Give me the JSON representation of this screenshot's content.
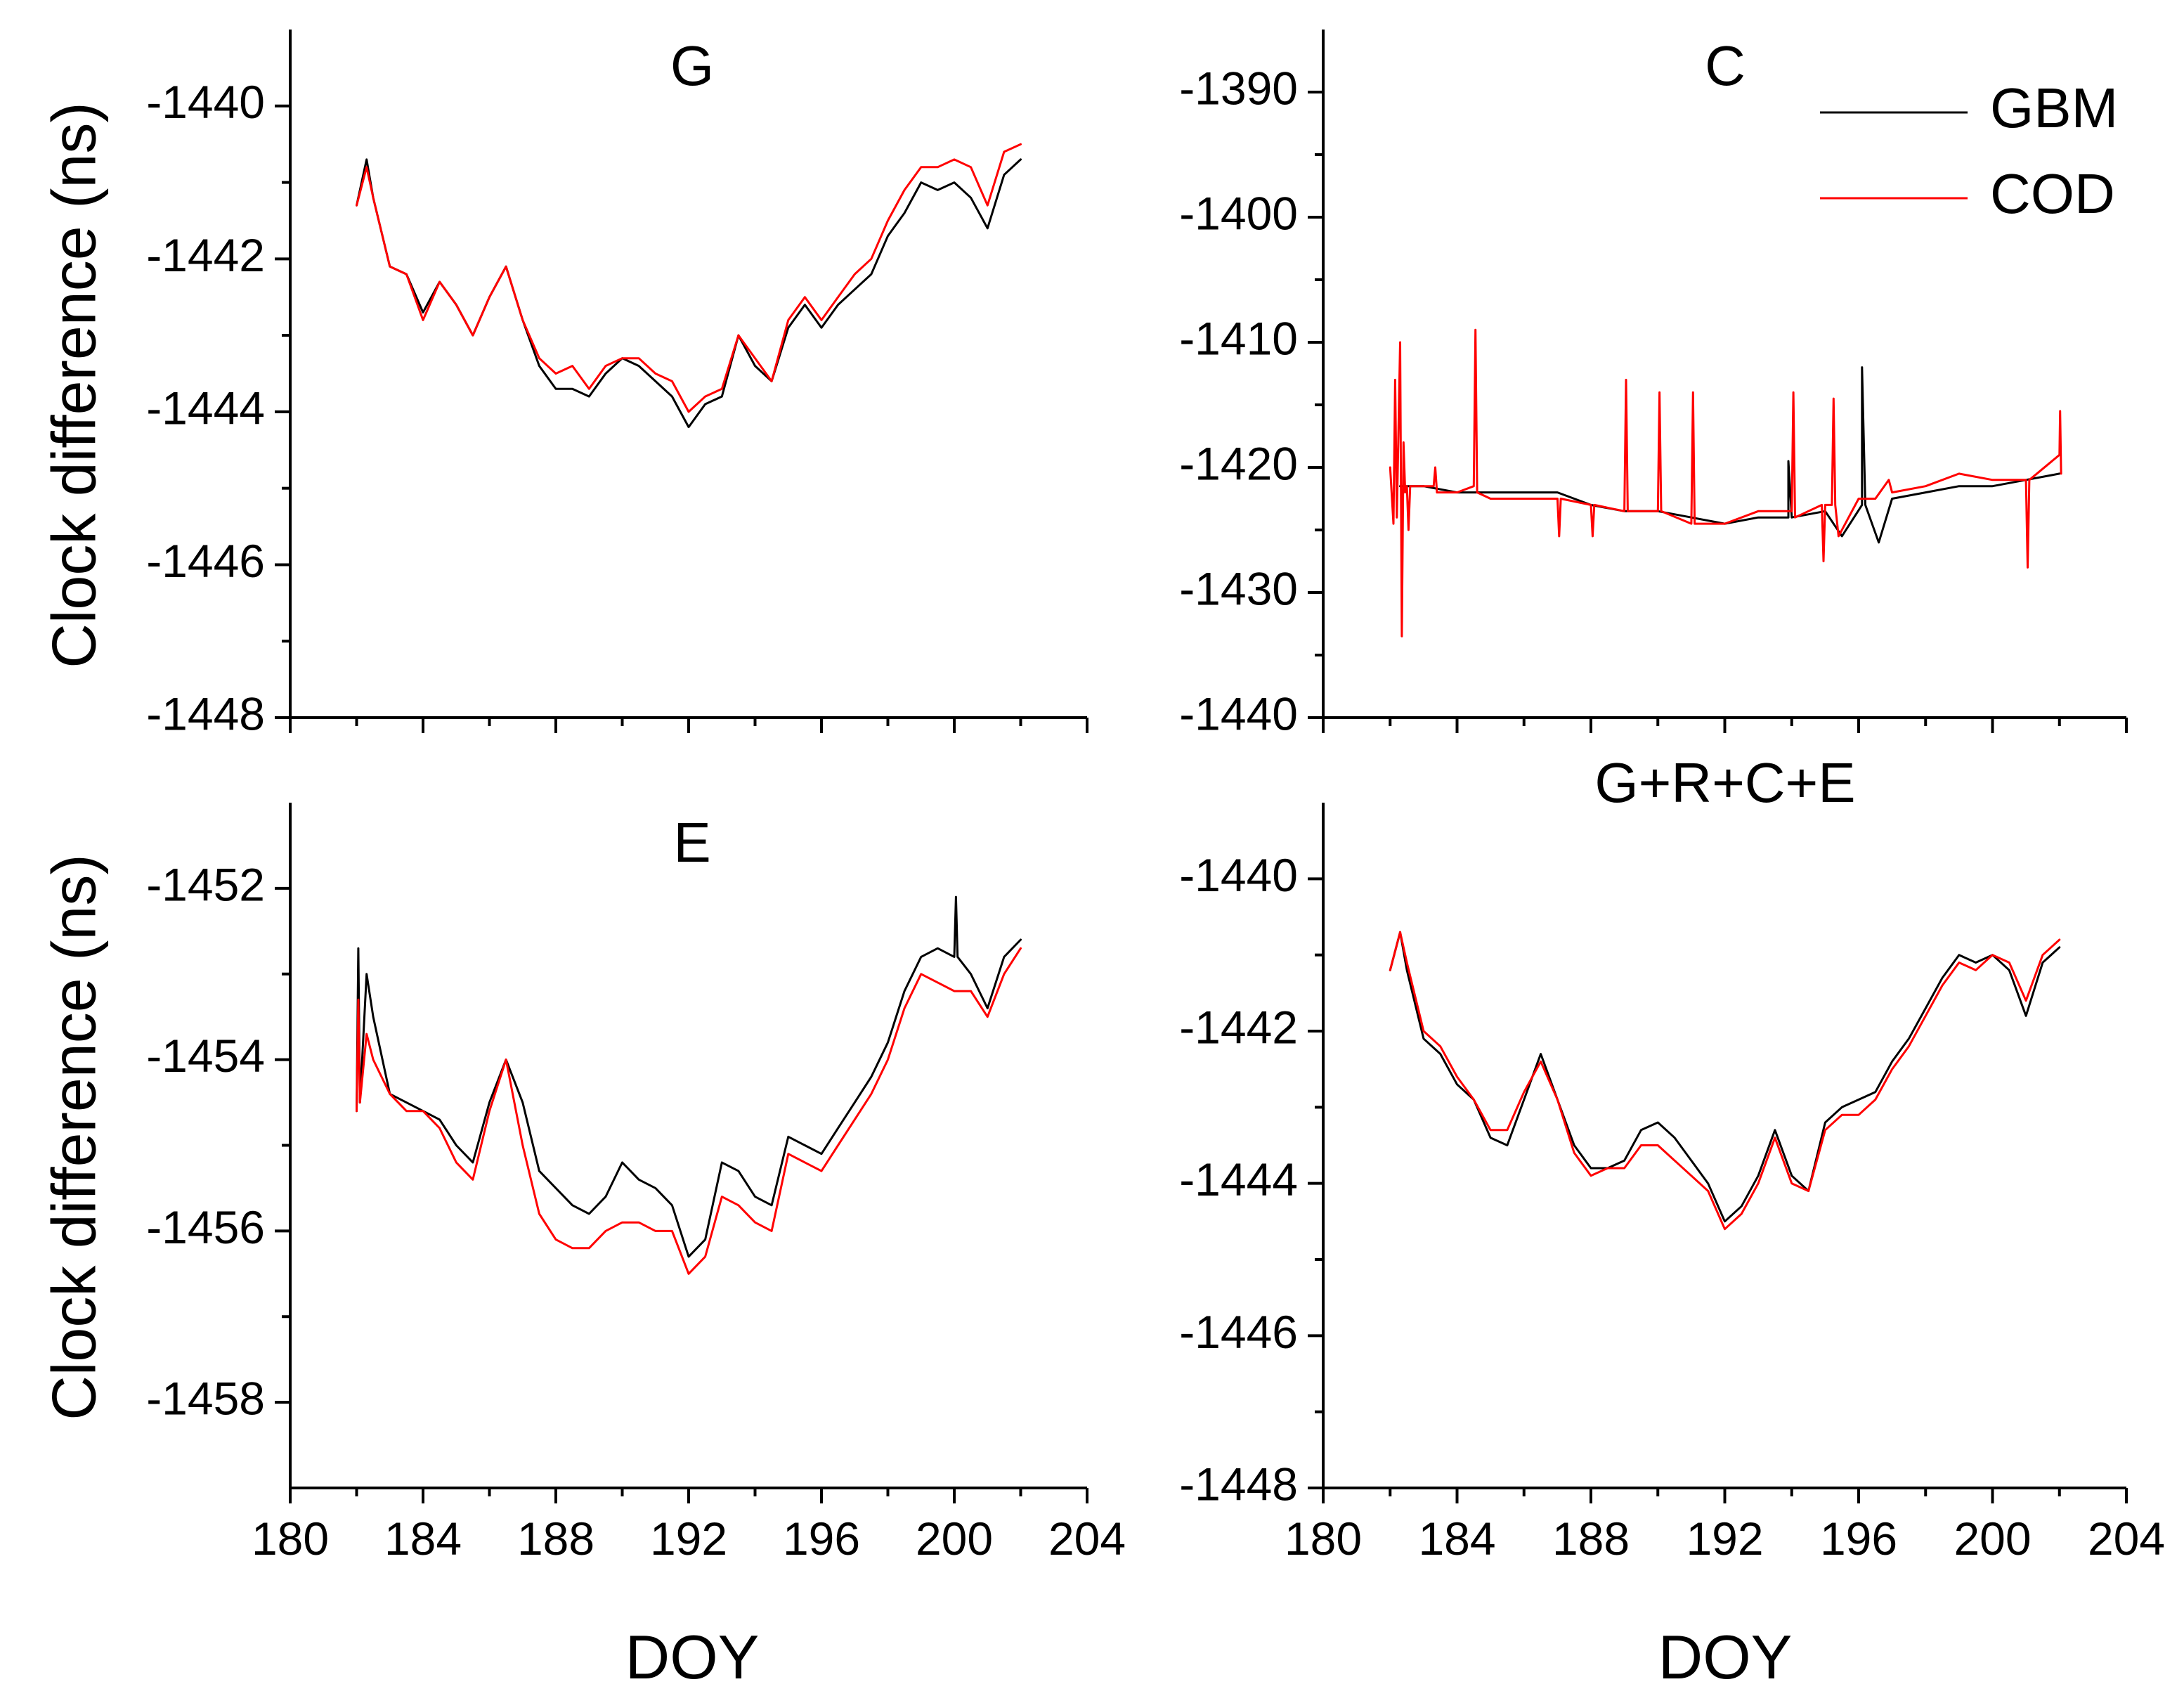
{
  "colors": {
    "GBM": "#000000",
    "COD": "#ff0000"
  },
  "legend": [
    {
      "name": "GBM",
      "color": "#000000"
    },
    {
      "name": "COD",
      "color": "#ff0000"
    }
  ],
  "legend_placement": "top-right of panel C",
  "shared_ylabel": "Clock difference (ns)",
  "shared_xlabel": "DOY",
  "chart_data": [
    {
      "type": "line",
      "title": "G",
      "xlabel": "",
      "ylabel": "Clock difference (ns)",
      "xlim": [
        180,
        204
      ],
      "ylim": [
        -1448,
        -1439
      ],
      "xticks": [
        180,
        184,
        188,
        192,
        196,
        200,
        204
      ],
      "yticks": [
        -1448,
        -1446,
        -1444,
        -1442,
        -1440
      ],
      "xtick_labels": [],
      "ytick_labels": [
        "-1448",
        "-1446",
        "-1444",
        "-1442",
        "-1440"
      ],
      "series": [
        {
          "name": "GBM",
          "color": "#000000",
          "x": [
            182.0,
            182.3,
            182.5,
            183.0,
            183.5,
            184.0,
            184.5,
            185.0,
            185.5,
            186.0,
            186.5,
            187.0,
            187.5,
            188.0,
            188.5,
            189.0,
            189.5,
            190.0,
            190.5,
            191.0,
            191.5,
            192.0,
            192.5,
            193.0,
            193.5,
            194.0,
            194.5,
            195.0,
            195.5,
            196.0,
            196.5,
            197.0,
            197.5,
            198.0,
            198.5,
            199.0,
            199.5,
            200.0,
            200.5,
            201.0,
            201.5,
            202.0
          ],
          "values": [
            -1441.3,
            -1440.7,
            -1441.2,
            -1442.1,
            -1442.2,
            -1442.7,
            -1442.3,
            -1442.6,
            -1443.0,
            -1442.5,
            -1442.1,
            -1442.8,
            -1443.4,
            -1443.7,
            -1443.7,
            -1443.8,
            -1443.5,
            -1443.3,
            -1443.4,
            -1443.6,
            -1443.8,
            -1444.2,
            -1443.9,
            -1443.8,
            -1443.0,
            -1443.4,
            -1443.6,
            -1442.9,
            -1442.6,
            -1442.9,
            -1442.6,
            -1442.4,
            -1442.2,
            -1441.7,
            -1441.4,
            -1441.0,
            -1441.1,
            -1441.0,
            -1441.2,
            -1441.6,
            -1440.9,
            -1440.7
          ]
        },
        {
          "name": "COD",
          "color": "#ff0000",
          "x": [
            182.0,
            182.3,
            182.5,
            183.0,
            183.5,
            184.0,
            184.5,
            185.0,
            185.5,
            186.0,
            186.5,
            187.0,
            187.5,
            188.0,
            188.5,
            189.0,
            189.5,
            190.0,
            190.5,
            191.0,
            191.5,
            192.0,
            192.5,
            193.0,
            193.5,
            194.0,
            194.5,
            195.0,
            195.5,
            196.0,
            196.5,
            197.0,
            197.5,
            198.0,
            198.5,
            199.0,
            199.5,
            200.0,
            200.5,
            201.0,
            201.5,
            202.0
          ],
          "values": [
            -1441.3,
            -1440.8,
            -1441.2,
            -1442.1,
            -1442.2,
            -1442.8,
            -1442.3,
            -1442.6,
            -1443.0,
            -1442.5,
            -1442.1,
            -1442.8,
            -1443.3,
            -1443.5,
            -1443.4,
            -1443.7,
            -1443.4,
            -1443.3,
            -1443.3,
            -1443.5,
            -1443.6,
            -1444.0,
            -1443.8,
            -1443.7,
            -1443.0,
            -1443.3,
            -1443.6,
            -1442.8,
            -1442.5,
            -1442.8,
            -1442.5,
            -1442.2,
            -1442.0,
            -1441.5,
            -1441.1,
            -1440.8,
            -1440.8,
            -1440.7,
            -1440.8,
            -1441.3,
            -1440.6,
            -1440.5
          ]
        }
      ]
    },
    {
      "type": "line",
      "title": "C",
      "xlabel": "",
      "ylabel": "",
      "xlim": [
        180,
        204
      ],
      "ylim": [
        -1440,
        -1385
      ],
      "xticks": [
        180,
        184,
        188,
        192,
        196,
        200,
        204
      ],
      "yticks": [
        -1440,
        -1430,
        -1420,
        -1410,
        -1400,
        -1390
      ],
      "xtick_labels": [],
      "ytick_labels": [
        "-1440",
        "-1430",
        "-1420",
        "-1410",
        "-1400",
        "-1390"
      ],
      "series": [
        {
          "name": "GBM",
          "color": "#000000",
          "x": [
            182.3,
            183.0,
            184.0,
            185.0,
            186.0,
            187.0,
            188.0,
            189.0,
            190.0,
            191.0,
            192.0,
            193.0,
            193.9,
            193.9,
            194.0,
            195.0,
            195.5,
            196.1,
            196.1,
            196.2,
            196.6,
            197.0,
            198.0,
            199.0,
            200.0,
            201.0,
            202.0
          ],
          "values": [
            -1421.5,
            -1421.5,
            -1422.0,
            -1422.0,
            -1422.0,
            -1422.0,
            -1423.0,
            -1423.5,
            -1423.5,
            -1424.0,
            -1424.5,
            -1424.0,
            -1424.0,
            -1419.5,
            -1424.0,
            -1423.5,
            -1425.5,
            -1423.0,
            -1412.0,
            -1423.0,
            -1426.0,
            -1422.5,
            -1422.0,
            -1421.5,
            -1421.5,
            -1421.0,
            -1420.5
          ]
        },
        {
          "name": "COD",
          "color": "#ff0000",
          "x": [
            182.0,
            182.1,
            182.15,
            182.2,
            182.3,
            182.35,
            182.4,
            182.45,
            182.5,
            182.55,
            182.6,
            183.0,
            183.3,
            183.35,
            183.4,
            184.0,
            184.5,
            184.55,
            184.6,
            185.0,
            186.0,
            187.0,
            187.05,
            187.1,
            188.0,
            188.05,
            188.1,
            189.0,
            189.05,
            189.1,
            190.0,
            190.05,
            190.1,
            191.0,
            191.05,
            191.1,
            192.0,
            193.0,
            194.0,
            194.05,
            194.1,
            194.9,
            194.95,
            195.0,
            195.2,
            195.25,
            195.3,
            195.4,
            196.0,
            196.5,
            196.9,
            197.0,
            198.0,
            199.0,
            200.0,
            201.0,
            201.05,
            201.1,
            202.0,
            202.02,
            202.05
          ],
          "values": [
            -1420.0,
            -1424.5,
            -1413.0,
            -1424.0,
            -1410.0,
            -1433.5,
            -1418.0,
            -1422.0,
            -1421.5,
            -1425.0,
            -1421.5,
            -1421.5,
            -1421.5,
            -1420.0,
            -1422.0,
            -1422.0,
            -1421.5,
            -1409.0,
            -1422.0,
            -1422.5,
            -1422.5,
            -1422.5,
            -1425.5,
            -1422.5,
            -1423.0,
            -1425.5,
            -1423.0,
            -1423.5,
            -1413.0,
            -1423.5,
            -1423.5,
            -1414.0,
            -1423.5,
            -1424.5,
            -1414.0,
            -1424.5,
            -1424.5,
            -1423.5,
            -1423.5,
            -1414.0,
            -1424.0,
            -1423.0,
            -1427.5,
            -1423.0,
            -1423.0,
            -1414.5,
            -1423.0,
            -1425.5,
            -1422.5,
            -1422.5,
            -1421.0,
            -1422.0,
            -1421.5,
            -1420.5,
            -1421.0,
            -1421.0,
            -1428.0,
            -1421.0,
            -1419.0,
            -1415.5,
            -1420.5
          ]
        }
      ]
    },
    {
      "type": "line",
      "title": "E",
      "xlabel": "DOY",
      "ylabel": "Clock difference (ns)",
      "xlim": [
        180,
        204
      ],
      "ylim": [
        -1459,
        -1451
      ],
      "xticks": [
        180,
        184,
        188,
        192,
        196,
        200,
        204
      ],
      "yticks": [
        -1458,
        -1456,
        -1454,
        -1452
      ],
      "xtick_labels": [
        "180",
        "184",
        "188",
        "192",
        "196",
        "200",
        "204"
      ],
      "ytick_labels": [
        "-1458",
        "-1456",
        "-1454",
        "-1452"
      ],
      "series": [
        {
          "name": "GBM",
          "color": "#000000",
          "x": [
            182.0,
            182.05,
            182.1,
            182.3,
            182.5,
            183.0,
            183.5,
            184.0,
            184.5,
            185.0,
            185.5,
            186.0,
            186.5,
            187.0,
            187.5,
            188.0,
            188.5,
            189.0,
            189.5,
            190.0,
            190.5,
            191.0,
            191.5,
            192.0,
            192.5,
            193.0,
            193.5,
            194.0,
            194.5,
            195.0,
            195.5,
            196.0,
            196.5,
            197.0,
            197.5,
            198.0,
            198.5,
            199.0,
            199.5,
            200.0,
            200.05,
            200.1,
            200.5,
            201.0,
            201.5,
            202.0
          ],
          "values": [
            -1454.6,
            -1452.7,
            -1454.5,
            -1453.0,
            -1453.5,
            -1454.4,
            -1454.5,
            -1454.6,
            -1454.7,
            -1455.0,
            -1455.2,
            -1454.5,
            -1454.0,
            -1454.5,
            -1455.3,
            -1455.5,
            -1455.7,
            -1455.8,
            -1455.6,
            -1455.2,
            -1455.4,
            -1455.5,
            -1455.7,
            -1456.3,
            -1456.1,
            -1455.2,
            -1455.3,
            -1455.6,
            -1455.7,
            -1454.9,
            -1455.0,
            -1455.1,
            -1454.8,
            -1454.5,
            -1454.2,
            -1453.8,
            -1453.2,
            -1452.8,
            -1452.7,
            -1452.8,
            -1452.1,
            -1452.8,
            -1453.0,
            -1453.4,
            -1452.8,
            -1452.6
          ]
        },
        {
          "name": "COD",
          "color": "#ff0000",
          "x": [
            182.0,
            182.05,
            182.1,
            182.3,
            182.5,
            183.0,
            183.5,
            184.0,
            184.5,
            185.0,
            185.5,
            186.0,
            186.5,
            187.0,
            187.5,
            188.0,
            188.5,
            189.0,
            189.5,
            190.0,
            190.5,
            191.0,
            191.5,
            192.0,
            192.5,
            193.0,
            193.5,
            194.0,
            194.5,
            195.0,
            195.5,
            196.0,
            196.5,
            197.0,
            197.5,
            198.0,
            198.5,
            199.0,
            199.5,
            200.0,
            200.5,
            201.0,
            201.5,
            202.0
          ],
          "values": [
            -1454.6,
            -1453.3,
            -1454.5,
            -1453.7,
            -1454.0,
            -1454.4,
            -1454.6,
            -1454.6,
            -1454.8,
            -1455.2,
            -1455.4,
            -1454.6,
            -1454.0,
            -1455.0,
            -1455.8,
            -1456.1,
            -1456.2,
            -1456.2,
            -1456.0,
            -1455.9,
            -1455.9,
            -1456.0,
            -1456.0,
            -1456.5,
            -1456.3,
            -1455.6,
            -1455.7,
            -1455.9,
            -1456.0,
            -1455.1,
            -1455.2,
            -1455.3,
            -1455.0,
            -1454.7,
            -1454.4,
            -1454.0,
            -1453.4,
            -1453.0,
            -1453.1,
            -1453.2,
            -1453.2,
            -1453.5,
            -1453.0,
            -1452.7
          ]
        }
      ]
    },
    {
      "type": "line",
      "title": "G+R+C+E",
      "xlabel": "DOY",
      "ylabel": "",
      "xlim": [
        180,
        204
      ],
      "ylim": [
        -1448,
        -1439
      ],
      "xticks": [
        180,
        184,
        188,
        192,
        196,
        200,
        204
      ],
      "yticks": [
        -1448,
        -1446,
        -1444,
        -1442,
        -1440
      ],
      "xtick_labels": [
        "180",
        "184",
        "188",
        "192",
        "196",
        "200",
        "204"
      ],
      "ytick_labels": [
        "-1448",
        "-1446",
        "-1444",
        "-1442",
        "-1440"
      ],
      "series": [
        {
          "name": "GBM",
          "color": "#000000",
          "x": [
            182.0,
            182.3,
            182.5,
            183.0,
            183.5,
            184.0,
            184.5,
            185.0,
            185.5,
            186.0,
            186.5,
            187.0,
            187.5,
            188.0,
            188.5,
            189.0,
            189.5,
            190.0,
            190.5,
            191.0,
            191.5,
            192.0,
            192.5,
            193.0,
            193.5,
            194.0,
            194.5,
            195.0,
            195.5,
            196.0,
            196.5,
            197.0,
            197.5,
            198.0,
            198.5,
            199.0,
            199.5,
            200.0,
            200.5,
            201.0,
            201.5,
            202.0
          ],
          "values": [
            -1441.2,
            -1440.7,
            -1441.2,
            -1442.1,
            -1442.3,
            -1442.7,
            -1442.9,
            -1443.4,
            -1443.5,
            -1442.9,
            -1442.3,
            -1442.9,
            -1443.5,
            -1443.8,
            -1443.8,
            -1443.7,
            -1443.3,
            -1443.2,
            -1443.4,
            -1443.7,
            -1444.0,
            -1444.5,
            -1444.3,
            -1443.9,
            -1443.3,
            -1443.9,
            -1444.1,
            -1443.2,
            -1443.0,
            -1442.9,
            -1442.8,
            -1442.4,
            -1442.1,
            -1441.7,
            -1441.3,
            -1441.0,
            -1441.1,
            -1441.0,
            -1441.2,
            -1441.8,
            -1441.1,
            -1440.9
          ]
        },
        {
          "name": "COD",
          "color": "#ff0000",
          "x": [
            182.0,
            182.3,
            182.5,
            183.0,
            183.5,
            184.0,
            184.5,
            185.0,
            185.5,
            186.0,
            186.5,
            187.0,
            187.5,
            188.0,
            188.5,
            189.0,
            189.5,
            190.0,
            190.5,
            191.0,
            191.5,
            192.0,
            192.5,
            193.0,
            193.5,
            194.0,
            194.5,
            195.0,
            195.5,
            196.0,
            196.5,
            197.0,
            197.5,
            198.0,
            198.5,
            199.0,
            199.5,
            200.0,
            200.5,
            201.0,
            201.5,
            202.0
          ],
          "values": [
            -1441.2,
            -1440.7,
            -1441.1,
            -1442.0,
            -1442.2,
            -1442.6,
            -1442.9,
            -1443.3,
            -1443.3,
            -1442.8,
            -1442.4,
            -1442.9,
            -1443.6,
            -1443.9,
            -1443.8,
            -1443.8,
            -1443.5,
            -1443.5,
            -1443.7,
            -1443.9,
            -1444.1,
            -1444.6,
            -1444.4,
            -1444.0,
            -1443.4,
            -1444.0,
            -1444.1,
            -1443.3,
            -1443.1,
            -1443.1,
            -1442.9,
            -1442.5,
            -1442.2,
            -1441.8,
            -1441.4,
            -1441.1,
            -1441.2,
            -1441.0,
            -1441.1,
            -1441.6,
            -1441.0,
            -1440.8
          ]
        }
      ]
    }
  ]
}
